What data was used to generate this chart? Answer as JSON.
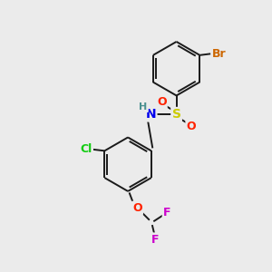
{
  "bg_color": "#ebebeb",
  "bond_color": "#1a1a1a",
  "colors": {
    "Br": "#cc6600",
    "S": "#cccc00",
    "O": "#ff2200",
    "N": "#0000ee",
    "H": "#4a9090",
    "Cl": "#11cc11",
    "F": "#cc00cc",
    "C": "#1a1a1a"
  },
  "font_size": 9,
  "line_width": 1.4
}
